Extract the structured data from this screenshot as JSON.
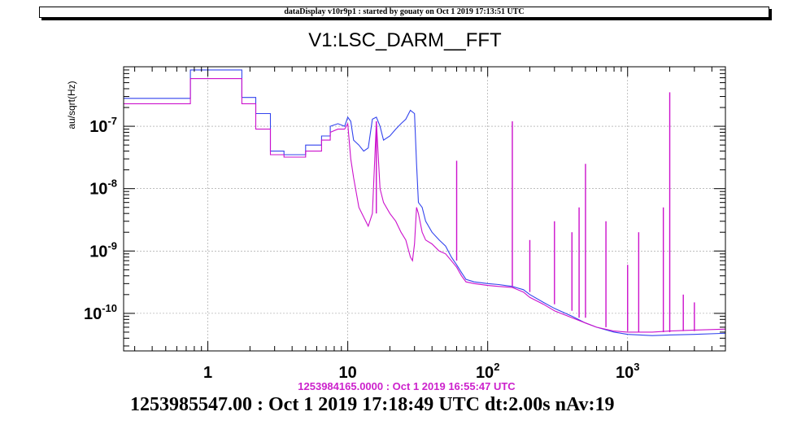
{
  "header": {
    "text": "dataDisplay v10r9p1 : started by gouaty on Oct  1 2019 17:13:51 UTC"
  },
  "chart_data": {
    "type": "line",
    "title": "V1:LSC_DARM__FFT",
    "ylabel": "au/sqrt(Hz)",
    "xlabel": "",
    "xscale": "log",
    "yscale": "log",
    "xlim": [
      0.25,
      5000
    ],
    "ylim": [
      2.5e-11,
      9e-07
    ],
    "grid": true,
    "x_tick_labels": [
      {
        "value": 1,
        "label": "1"
      },
      {
        "value": 10,
        "label": "10"
      },
      {
        "value": 100,
        "label": "10",
        "exp": "2"
      },
      {
        "value": 1000,
        "label": "10",
        "exp": "3"
      }
    ],
    "y_tick_labels": [
      {
        "value": 1e-07,
        "exp": "-7"
      },
      {
        "value": 1e-08,
        "exp": "-8"
      },
      {
        "value": 1e-09,
        "exp": "-9"
      },
      {
        "value": 1e-10,
        "exp": "-10"
      }
    ],
    "series": [
      {
        "color": "#3344ee",
        "points": [
          [
            0.25,
            2.8e-07
          ],
          [
            0.75,
            2.8e-07
          ],
          [
            0.75,
            8e-07
          ],
          [
            1.75,
            8e-07
          ],
          [
            1.75,
            2.9e-07
          ],
          [
            2.2,
            2.9e-07
          ],
          [
            2.2,
            1.6e-07
          ],
          [
            2.8,
            1.6e-07
          ],
          [
            2.8,
            4e-08
          ],
          [
            3.5,
            4e-08
          ],
          [
            3.5,
            3.5e-08
          ],
          [
            5,
            3.5e-08
          ],
          [
            5,
            5e-08
          ],
          [
            6.5,
            5e-08
          ],
          [
            6.5,
            7e-08
          ],
          [
            7.5,
            7e-08
          ],
          [
            7.5,
            1e-07
          ],
          [
            8.5,
            1.1e-07
          ],
          [
            9.5,
            1e-07
          ],
          [
            10,
            1.4e-07
          ],
          [
            10.5,
            1.2e-07
          ],
          [
            11,
            6e-08
          ],
          [
            12,
            5e-08
          ],
          [
            13,
            4e-08
          ],
          [
            14,
            4.5e-08
          ],
          [
            15,
            1.3e-07
          ],
          [
            16,
            1.4e-07
          ],
          [
            17,
            1e-07
          ],
          [
            18,
            6e-08
          ],
          [
            20,
            7e-08
          ],
          [
            22,
            9e-08
          ],
          [
            24,
            1.1e-07
          ],
          [
            26,
            1.3e-07
          ],
          [
            28,
            1.8e-07
          ],
          [
            30,
            1.6e-07
          ],
          [
            31,
            2.5e-08
          ],
          [
            32,
            6e-09
          ],
          [
            34,
            5e-09
          ],
          [
            36,
            3e-09
          ],
          [
            40,
            2e-09
          ],
          [
            45,
            1.5e-09
          ],
          [
            50,
            1.2e-09
          ],
          [
            55,
            8e-10
          ],
          [
            60,
            6e-10
          ],
          [
            65,
            4.5e-10
          ],
          [
            70,
            3.5e-10
          ],
          [
            80,
            3.2e-10
          ],
          [
            100,
            3e-10
          ],
          [
            120,
            2.9e-10
          ],
          [
            150,
            2.7e-10
          ],
          [
            180,
            2.4e-10
          ],
          [
            200,
            2e-10
          ],
          [
            250,
            1.5e-10
          ],
          [
            300,
            1.2e-10
          ],
          [
            400,
            9e-11
          ],
          [
            500,
            7e-11
          ],
          [
            600,
            6e-11
          ],
          [
            800,
            5e-11
          ],
          [
            1000,
            4.6e-11
          ],
          [
            1500,
            4.4e-11
          ],
          [
            2000,
            4.5e-11
          ],
          [
            3000,
            4.6e-11
          ],
          [
            5000,
            4.8e-11
          ]
        ]
      },
      {
        "color": "#cc11cc",
        "points": [
          [
            0.25,
            2.3e-07
          ],
          [
            0.75,
            2.3e-07
          ],
          [
            0.75,
            5.8e-07
          ],
          [
            1.75,
            5.8e-07
          ],
          [
            1.75,
            2.3e-07
          ],
          [
            2.2,
            2.3e-07
          ],
          [
            2.2,
            9e-08
          ],
          [
            2.8,
            9e-08
          ],
          [
            2.8,
            3.5e-08
          ],
          [
            3.5,
            3.5e-08
          ],
          [
            3.5,
            3.2e-08
          ],
          [
            5,
            3.2e-08
          ],
          [
            5,
            4e-08
          ],
          [
            6.5,
            4e-08
          ],
          [
            6.5,
            6e-08
          ],
          [
            7.5,
            6e-08
          ],
          [
            7.5,
            8e-08
          ],
          [
            8.5,
            9e-08
          ],
          [
            9.5,
            9e-08
          ],
          [
            10,
            1.1e-07
          ],
          [
            10.5,
            3e-08
          ],
          [
            11,
            1.5e-08
          ],
          [
            12,
            5e-09
          ],
          [
            13,
            3.5e-09
          ],
          [
            14,
            2.5e-09
          ],
          [
            15,
            4e-09
          ],
          [
            16,
            1.2e-07
          ],
          [
            17,
            1e-08
          ],
          [
            18,
            6e-09
          ],
          [
            20,
            4e-09
          ],
          [
            22,
            3e-09
          ],
          [
            24,
            2e-09
          ],
          [
            26,
            1.5e-09
          ],
          [
            28,
            8e-10
          ],
          [
            29,
            7e-10
          ],
          [
            30,
            1.3e-09
          ],
          [
            31,
            5e-09
          ],
          [
            32,
            4e-09
          ],
          [
            34,
            2e-09
          ],
          [
            36,
            1.5e-09
          ],
          [
            40,
            1.3e-09
          ],
          [
            45,
            1e-09
          ],
          [
            50,
            9e-10
          ],
          [
            55,
            7e-10
          ],
          [
            60,
            5.5e-10
          ],
          [
            65,
            4e-10
          ],
          [
            70,
            3.2e-10
          ],
          [
            80,
            3e-10
          ],
          [
            100,
            2.8e-10
          ],
          [
            120,
            2.7e-10
          ],
          [
            150,
            2.6e-10
          ],
          [
            180,
            2.2e-10
          ],
          [
            200,
            1.8e-10
          ],
          [
            250,
            1.4e-10
          ],
          [
            300,
            1.1e-10
          ],
          [
            400,
            8.5e-11
          ],
          [
            500,
            7e-11
          ],
          [
            600,
            6e-11
          ],
          [
            800,
            5.2e-11
          ],
          [
            1000,
            5e-11
          ],
          [
            1500,
            5e-11
          ],
          [
            2000,
            5.2e-11
          ],
          [
            3000,
            5.4e-11
          ],
          [
            5000,
            5.6e-11
          ]
        ],
        "peaks": [
          [
            16,
            1.2e-07
          ],
          [
            60,
            2.8e-08
          ],
          [
            150,
            1.2e-07
          ],
          [
            200,
            1.5e-09
          ],
          [
            300,
            3e-09
          ],
          [
            400,
            2e-09
          ],
          [
            450,
            5e-09
          ],
          [
            500,
            2.5e-08
          ],
          [
            700,
            3e-09
          ],
          [
            1000,
            6e-10
          ],
          [
            1200,
            2e-09
          ],
          [
            1800,
            5e-09
          ],
          [
            2000,
            3.5e-07
          ],
          [
            2500,
            2e-10
          ],
          [
            3000,
            1.5e-10
          ]
        ]
      }
    ]
  },
  "reference_timestamp": "1253984165.0000 : Oct  1 2019 16:55:47 UTC",
  "footer_timestamp": "1253985547.00 : Oct  1 2019 17:18:49 UTC dt:2.00s nAv:19"
}
